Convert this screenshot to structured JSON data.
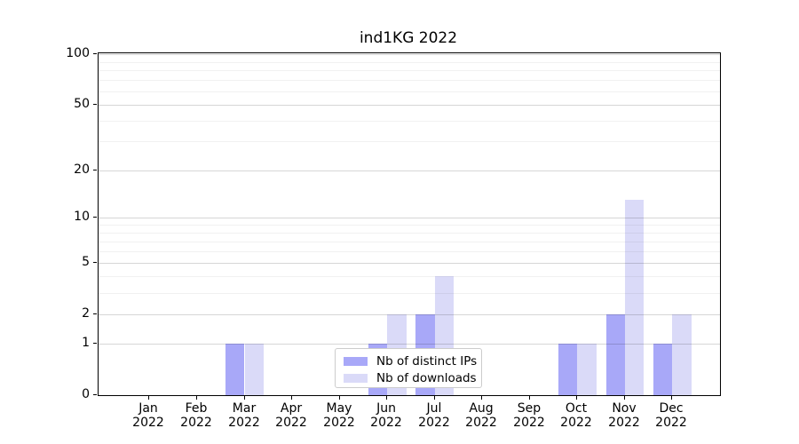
{
  "title": "ind1KG 2022",
  "chart_data": {
    "type": "bar",
    "title": "ind1KG 2022",
    "months": [
      "Jan",
      "Feb",
      "Mar",
      "Apr",
      "May",
      "Jun",
      "Jul",
      "Aug",
      "Sep",
      "Oct",
      "Nov",
      "Dec"
    ],
    "year_label": "2022",
    "series": [
      {
        "name": "Nb of distinct IPs",
        "color": "#a8a8f8",
        "values": [
          0,
          0,
          1,
          0,
          0,
          1,
          2,
          0,
          0,
          1,
          2,
          1
        ]
      },
      {
        "name": "Nb of downloads",
        "color": "#dadaf8",
        "values": [
          0,
          0,
          1,
          0,
          0,
          2,
          4,
          0,
          0,
          1,
          13,
          2
        ]
      }
    ],
    "y_scale": "log1p",
    "y_major_ticks": [
      100,
      50,
      20,
      10,
      5,
      2,
      1,
      0
    ],
    "y_minor_gridlines": [
      3,
      4,
      6,
      7,
      8,
      9,
      30,
      40,
      60,
      70,
      80,
      90
    ],
    "ylim": [
      0,
      115
    ],
    "grid": true,
    "legend_position": "lower center"
  },
  "colors": {
    "bar_distinct_ips": "#a8a8f8",
    "bar_downloads": "#dadaf8",
    "spine": "#000000",
    "text": "#000000",
    "legend_border": "#cccccc"
  }
}
